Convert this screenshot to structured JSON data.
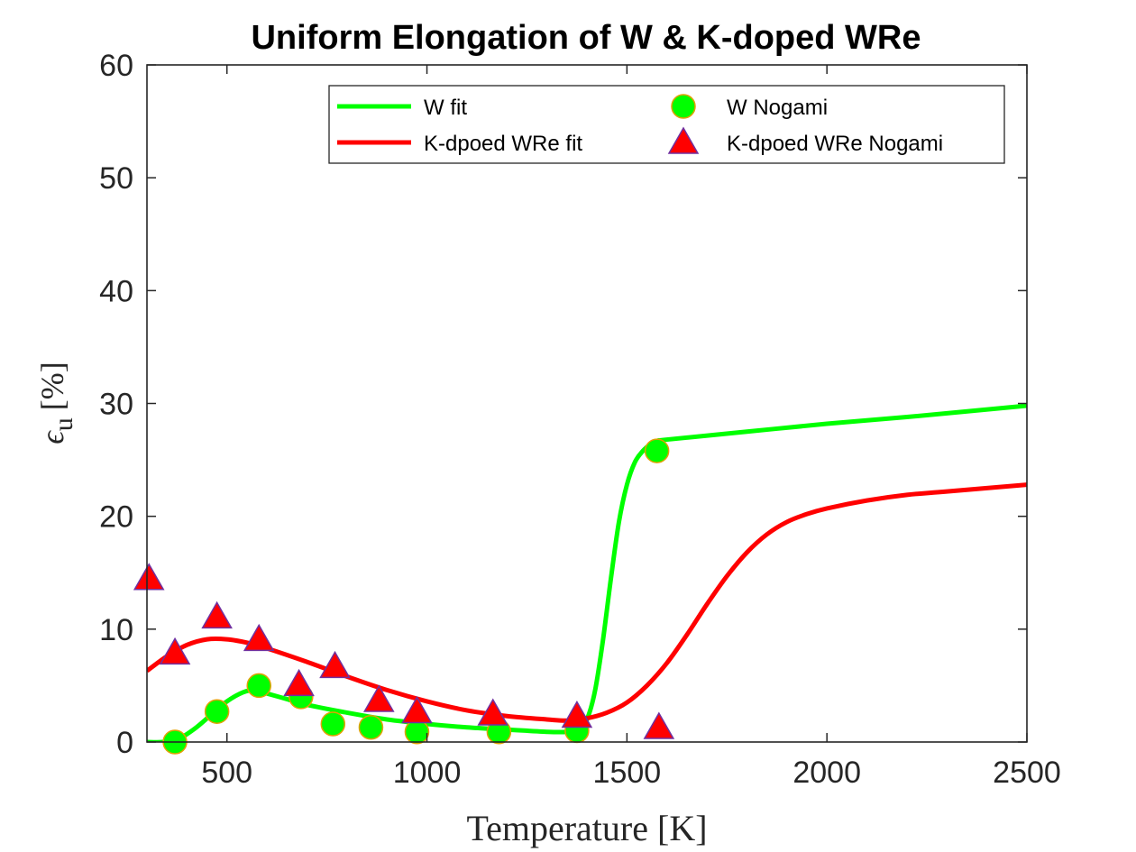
{
  "chart_data": {
    "type": "line",
    "title": "Uniform Elongation of W & K-doped WRe",
    "xlabel": "Temperature [K]",
    "ylabel_main": "ϵ",
    "ylabel_sub": "u",
    "ylabel_unit": "[%]",
    "xlim": [
      300,
      2500
    ],
    "ylim": [
      0,
      60
    ],
    "xticks": [
      500,
      1000,
      1500,
      2000,
      2500
    ],
    "yticks": [
      0,
      10,
      20,
      30,
      40,
      50,
      60
    ],
    "grid": false,
    "legend_position": "top-right",
    "colors": {
      "w": "#00ff00",
      "wre": "#ff0000",
      "triangle_edge": "#7030a0",
      "circle_edge": "#e0a000"
    },
    "series": [
      {
        "name": "W fit",
        "kind": "line",
        "x": [
          300,
          340,
          380,
          420,
          460,
          500,
          540,
          570,
          600,
          650,
          700,
          800,
          900,
          1000,
          1100,
          1200,
          1300,
          1350,
          1380,
          1400,
          1420,
          1440,
          1460,
          1480,
          1500,
          1520,
          1540,
          1560,
          1580,
          1600,
          1800,
          2000,
          2200,
          2500
        ],
        "y": [
          0,
          0,
          0.3,
          1.2,
          2.4,
          3.6,
          4.4,
          4.6,
          4.3,
          3.8,
          3.3,
          2.6,
          2.0,
          1.6,
          1.3,
          1.1,
          0.9,
          0.9,
          1.2,
          2.0,
          4.5,
          9.0,
          14.5,
          19.5,
          22.8,
          24.8,
          25.8,
          26.4,
          26.7,
          26.8,
          27.5,
          28.2,
          28.8,
          29.8
        ]
      },
      {
        "name": "K-dpoed WRe fit",
        "kind": "line",
        "x": [
          300,
          350,
          400,
          450,
          500,
          550,
          600,
          700,
          800,
          900,
          1000,
          1100,
          1200,
          1300,
          1350,
          1400,
          1450,
          1500,
          1550,
          1600,
          1650,
          1700,
          1750,
          1800,
          1850,
          1900,
          1950,
          2000,
          2100,
          2200,
          2300,
          2500
        ],
        "y": [
          6.3,
          7.6,
          8.6,
          9.1,
          9.1,
          8.8,
          8.3,
          7.1,
          5.8,
          4.6,
          3.6,
          2.8,
          2.3,
          2.0,
          1.9,
          2.1,
          2.6,
          3.5,
          5.0,
          7.0,
          9.5,
          12.2,
          14.7,
          16.8,
          18.4,
          19.5,
          20.2,
          20.7,
          21.4,
          21.9,
          22.2,
          22.8
        ]
      },
      {
        "name": "W Nogami",
        "kind": "scatter",
        "marker": "circle",
        "x": [
          370,
          475,
          580,
          685,
          765,
          860,
          975,
          1180,
          1375,
          1575
        ],
        "y": [
          0,
          2.7,
          5.0,
          4.0,
          1.6,
          1.3,
          0.9,
          0.9,
          1.0,
          25.8
        ]
      },
      {
        "name": "K-dpoed WRe Nogami",
        "kind": "scatter",
        "marker": "triangle",
        "x": [
          305,
          370,
          475,
          580,
          680,
          770,
          880,
          975,
          1165,
          1375,
          1580
        ],
        "y": [
          14.4,
          7.8,
          11.0,
          9.0,
          5.0,
          6.6,
          3.6,
          2.6,
          2.4,
          2.2,
          1.2
        ]
      }
    ]
  }
}
